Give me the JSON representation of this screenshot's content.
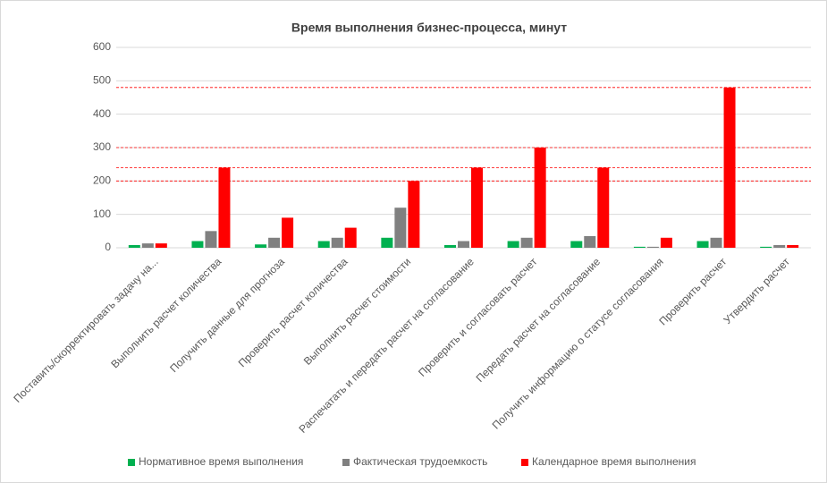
{
  "chart_data": {
    "type": "bar",
    "title": "Время выполнения бизнес-процесса, минут",
    "categories": [
      "Поставить/скорректировать задачу на...",
      "Выполнить расчет количества",
      "Получить данные для прогноза",
      "Проверить расчет количества",
      "Выполнить расчет стоимости",
      "Распечатать и передать расчет на согласование",
      "Проверить и согласовать расчет",
      "Передать расчет на согласование",
      "Получить информацию о статусе согласования",
      "Проверить расчет",
      "Утвердить расчет"
    ],
    "series": [
      {
        "name": "Нормативное время выполнения",
        "color": "#00b050",
        "values": [
          8,
          20,
          10,
          20,
          30,
          8,
          20,
          20,
          3,
          20,
          3
        ]
      },
      {
        "name": "Фактическая трудоемкость",
        "color": "#808080",
        "values": [
          13,
          50,
          30,
          30,
          120,
          20,
          30,
          35,
          3,
          30,
          8
        ]
      },
      {
        "name": "Календарное время выполнения",
        "color": "#ff0000",
        "values": [
          13,
          240,
          90,
          60,
          200,
          240,
          300,
          240,
          30,
          480,
          8
        ]
      }
    ],
    "ylim": [
      0,
      600
    ],
    "yticks": [
      0,
      100,
      200,
      300,
      400,
      500,
      600
    ],
    "grid": true,
    "reference_lines": [
      480,
      300,
      240,
      200
    ],
    "reference_color": "#ff0000",
    "legend": "bottom"
  }
}
